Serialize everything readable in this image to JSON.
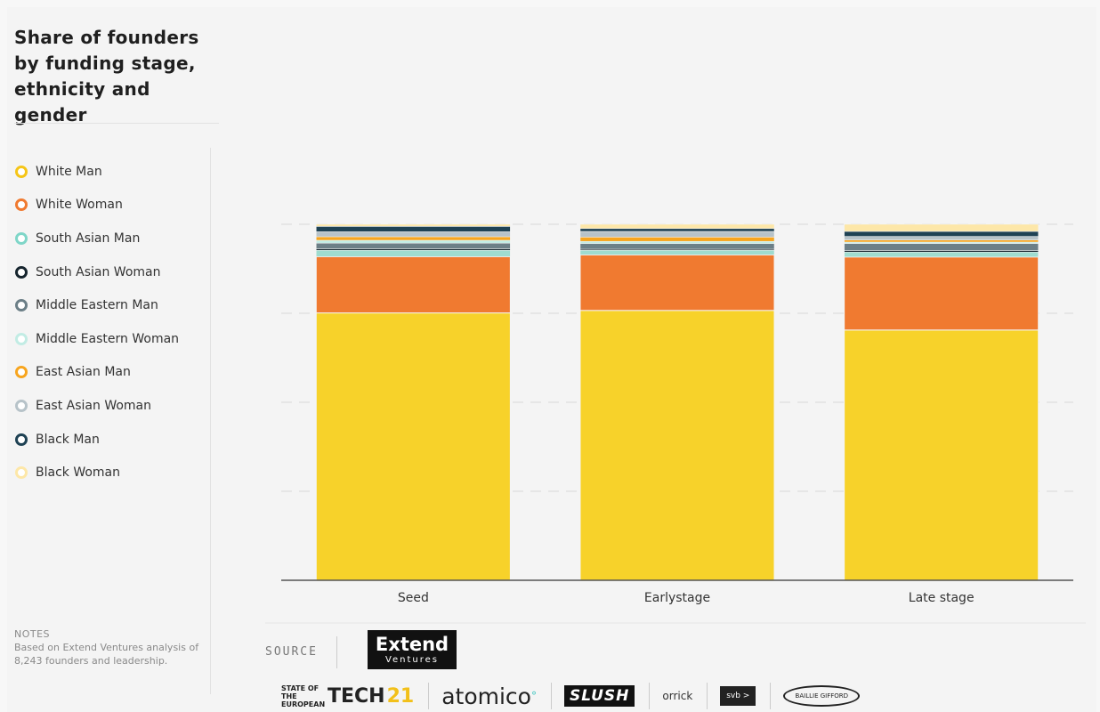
{
  "title": "Share of founders by funding stage, ethnicity and gender",
  "legend": [
    {
      "label": "White Man",
      "color": "#f5c518"
    },
    {
      "label": "White Woman",
      "color": "#f07a30"
    },
    {
      "label": "South Asian Man",
      "color": "#7fd6c8"
    },
    {
      "label": "South Asian Woman",
      "color": "#16252e"
    },
    {
      "label": "Middle Eastern Man",
      "color": "#6c7f87"
    },
    {
      "label": "Middle Eastern Woman",
      "color": "#c2ece4"
    },
    {
      "label": "East Asian Man",
      "color": "#f7a51f"
    },
    {
      "label": "East Asian Woman",
      "color": "#b7c3c9"
    },
    {
      "label": "Black Man",
      "color": "#1f4254"
    },
    {
      "label": "Black Woman",
      "color": "#fde7a8"
    }
  ],
  "notes": {
    "heading": "NOTES",
    "text": "Based on Extend Ventures analysis of 8,243 founders and leadership."
  },
  "source": {
    "label": "SOURCE",
    "logo_main": "Extend",
    "logo_sub": "Ventures"
  },
  "partner_logos": {
    "state_small": "STATE OF THE EUROPEAN",
    "state_big": "TECH",
    "state_num": "21",
    "atomico": "atomico",
    "slush": "SLUSH",
    "orrick": "orrick",
    "svb": "svb >",
    "bg": "BAILLIE GIFFORD"
  },
  "chart_data": {
    "type": "bar",
    "stacked": true,
    "categories": [
      "Seed",
      "Earlystage",
      "Late stage"
    ],
    "ylim": [
      0,
      100
    ],
    "grid": true,
    "series": [
      {
        "name": "White Man",
        "color": "#f7d22a",
        "values": [
          75.1,
          75.8,
          70.3
        ]
      },
      {
        "name": "White Woman",
        "color": "#f07a30",
        "values": [
          15.8,
          15.6,
          20.5
        ]
      },
      {
        "name": "South Asian Man",
        "color": "#9fdcd0",
        "values": [
          1.8,
          1.3,
          1.4
        ]
      },
      {
        "name": "South Asian Woman",
        "color": "#16252e",
        "values": [
          0.4,
          0.3,
          0.4
        ]
      },
      {
        "name": "Middle Eastern Man",
        "color": "#6c7f87",
        "values": [
          1.6,
          1.6,
          2.0
        ]
      },
      {
        "name": "Middle Eastern Woman",
        "color": "#c2ece4",
        "values": [
          0.8,
          0.6,
          0.4
        ]
      },
      {
        "name": "East Asian Man",
        "color": "#f7a51f",
        "values": [
          1.0,
          1.2,
          0.6
        ]
      },
      {
        "name": "East Asian Woman",
        "color": "#b7c3c9",
        "values": [
          1.4,
          1.6,
          1.0
        ]
      },
      {
        "name": "Black Man",
        "color": "#1f4254",
        "values": [
          1.5,
          0.8,
          1.4
        ]
      },
      {
        "name": "Black Woman",
        "color": "#fde7a8",
        "values": [
          0.6,
          1.2,
          2.0
        ]
      }
    ]
  }
}
